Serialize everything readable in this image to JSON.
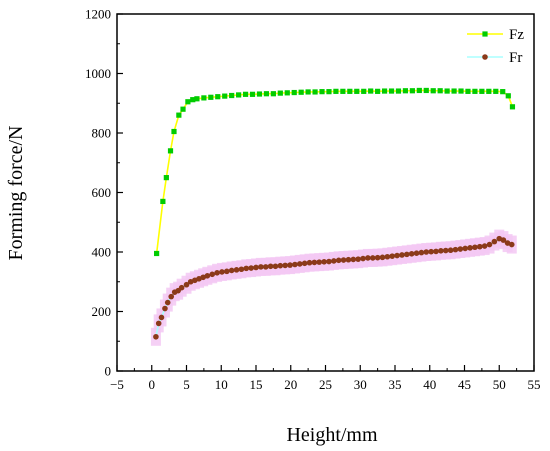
{
  "chart_data": {
    "type": "line",
    "xlabel": "Height/mm",
    "ylabel": "Forming force/N",
    "xlim": [
      -5,
      55
    ],
    "ylim": [
      0,
      1200
    ],
    "xticks": [
      "−5",
      "0",
      "5",
      "10",
      "15",
      "20",
      "25",
      "30",
      "35",
      "40",
      "45",
      "50",
      "55"
    ],
    "yticks": [
      "0",
      "200",
      "400",
      "600",
      "800",
      "1000",
      "1200"
    ],
    "grid": false,
    "legend_position": "top-right",
    "series": [
      {
        "name": "Fz",
        "line_color": "#ffff00",
        "marker_color": "#00cc00",
        "marker": "square",
        "x": [
          0.7,
          1.6,
          2.1,
          2.7,
          3.2,
          3.9,
          4.5,
          5.2,
          5.9,
          6.5,
          7.5,
          8.5,
          9.5,
          10.5,
          11.5,
          12.5,
          13.5,
          14.5,
          15.5,
          16.5,
          17.5,
          18.5,
          19.5,
          20.5,
          21.5,
          22.5,
          23.5,
          24.5,
          25.5,
          26.5,
          27.5,
          28.5,
          29.5,
          30.5,
          31.5,
          32.5,
          33.5,
          34.5,
          35.5,
          36.5,
          37.5,
          38.5,
          39.5,
          40.5,
          41.5,
          42.5,
          43.5,
          44.5,
          45.5,
          46.5,
          47.5,
          48.5,
          49.5,
          50.5,
          51.3,
          51.9
        ],
        "y": [
          395,
          570,
          650,
          740,
          805,
          860,
          880,
          905,
          912,
          915,
          918,
          920,
          922,
          924,
          926,
          928,
          930,
          930,
          931,
          932,
          932,
          934,
          935,
          936,
          937,
          938,
          938,
          939,
          939,
          940,
          940,
          940,
          940,
          940,
          941,
          940,
          941,
          941,
          941,
          942,
          942,
          943,
          943,
          942,
          942,
          941,
          941,
          941,
          940,
          940,
          940,
          940,
          940,
          939,
          925,
          888
        ]
      },
      {
        "name": "Fr",
        "line_color": "#aaffff",
        "marker_color": "#8b3a1a",
        "band_color": "#f3c8f3",
        "marker": "circle",
        "x": [
          0.6,
          1.0,
          1.4,
          1.9,
          2.3,
          2.8,
          3.3,
          3.8,
          4.3,
          5.0,
          5.6,
          6.2,
          6.8,
          7.4,
          8.0,
          8.7,
          9.4,
          10.1,
          10.8,
          11.5,
          12.2,
          12.9,
          13.6,
          14.3,
          15.0,
          15.7,
          16.4,
          17.1,
          17.8,
          18.5,
          19.2,
          19.9,
          20.6,
          21.3,
          22.0,
          22.7,
          23.4,
          24.1,
          24.8,
          25.5,
          26.2,
          26.9,
          27.6,
          28.3,
          29.0,
          29.7,
          30.4,
          31.1,
          31.8,
          32.5,
          33.2,
          33.9,
          34.6,
          35.3,
          36.0,
          36.7,
          37.4,
          38.1,
          38.8,
          39.5,
          40.2,
          40.9,
          41.6,
          42.3,
          43.0,
          43.7,
          44.4,
          45.1,
          45.8,
          46.5,
          47.2,
          47.9,
          48.6,
          49.3,
          50.0,
          50.6,
          51.2,
          51.8
        ],
        "y": [
          115,
          160,
          180,
          210,
          230,
          250,
          265,
          270,
          280,
          290,
          300,
          305,
          310,
          315,
          320,
          325,
          330,
          333,
          335,
          338,
          340,
          342,
          345,
          346,
          348,
          350,
          350,
          352,
          352,
          354,
          355,
          356,
          358,
          360,
          362,
          364,
          365,
          366,
          367,
          368,
          370,
          372,
          373,
          374,
          375,
          376,
          378,
          380,
          380,
          381,
          382,
          384,
          386,
          388,
          390,
          392,
          394,
          396,
          398,
          400,
          401,
          402,
          404,
          405,
          406,
          408,
          410,
          412,
          414,
          416,
          418,
          420,
          425,
          435,
          445,
          440,
          430,
          425
        ]
      }
    ]
  }
}
